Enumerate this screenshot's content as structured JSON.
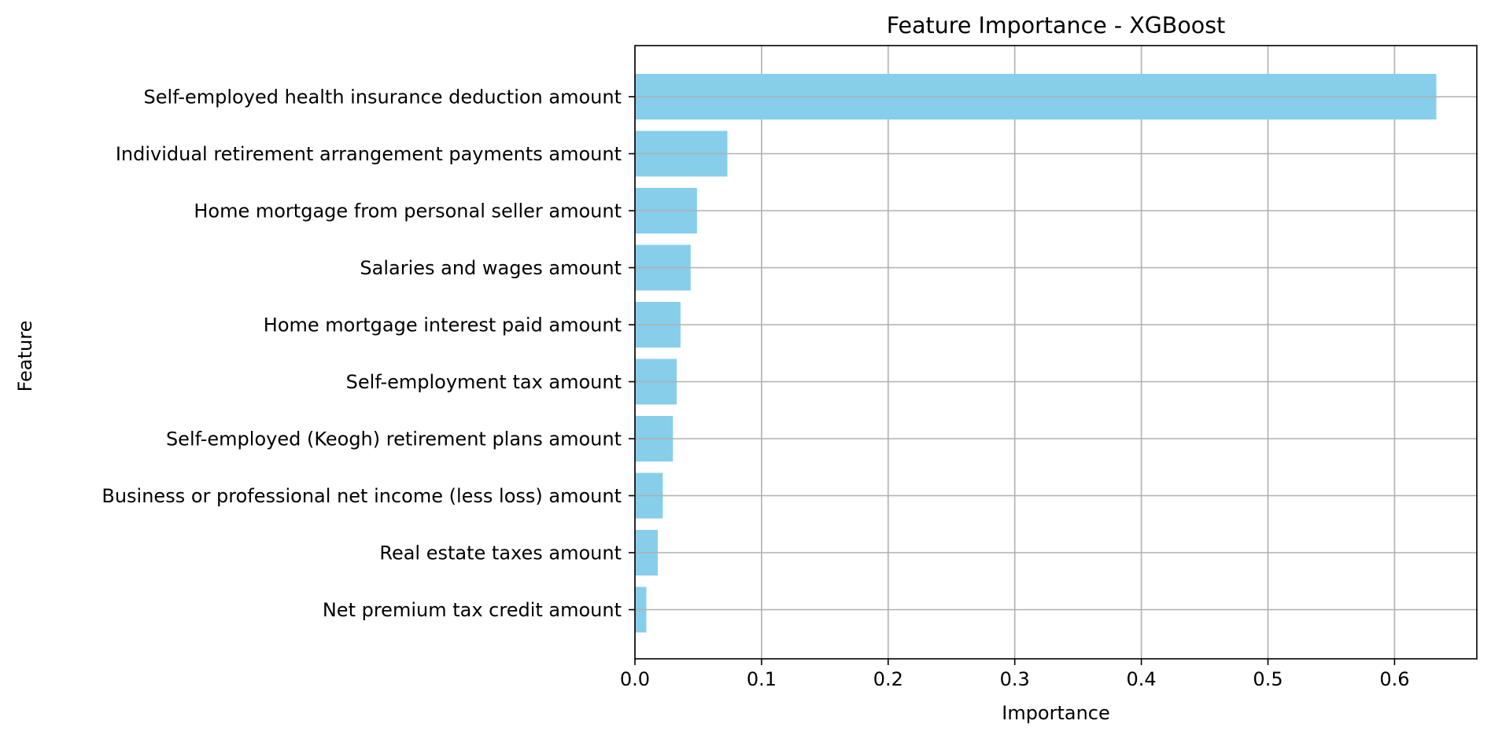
{
  "chart_data": {
    "type": "bar",
    "orientation": "horizontal",
    "title": "Feature Importance - XGBoost",
    "xlabel": "Importance",
    "ylabel": "Feature",
    "xlim": [
      0.0,
      0.665
    ],
    "xticks": [
      0.0,
      0.1,
      0.2,
      0.3,
      0.4,
      0.5,
      0.6
    ],
    "xtick_labels": [
      "0.0",
      "0.1",
      "0.2",
      "0.3",
      "0.4",
      "0.5",
      "0.6"
    ],
    "grid": true,
    "bar_color": "#87CEEB",
    "grid_color": "#b0b0b0",
    "categories": [
      "Self-employed health insurance deduction amount",
      "Individual retirement arrangement payments amount",
      "Home mortgage from personal seller amount",
      "Salaries and wages amount",
      "Home mortgage interest paid amount",
      "Self-employment tax amount",
      "Self-employed (Keogh) retirement plans amount",
      "Business or professional net income (less loss) amount",
      "Real estate taxes amount",
      "Net premium tax credit amount"
    ],
    "values": [
      0.633,
      0.073,
      0.049,
      0.044,
      0.036,
      0.033,
      0.03,
      0.022,
      0.018,
      0.009
    ]
  }
}
